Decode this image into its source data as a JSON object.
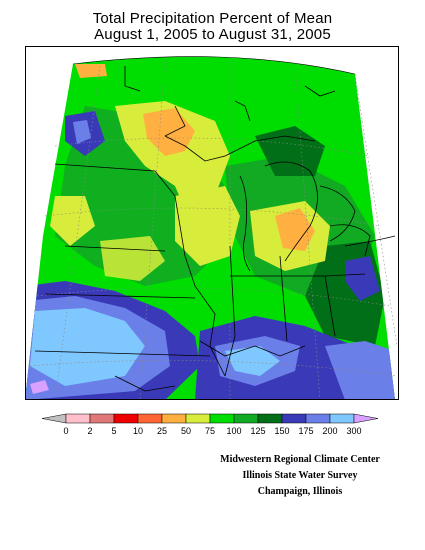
{
  "title": {
    "line1": "Total Precipitation Percent of Mean",
    "line2": "August 1, 2005 to August 31, 2005"
  },
  "legend": {
    "colors": [
      "#c0c0c0",
      "#ffc0cb",
      "#e07878",
      "#ee0000",
      "#ff6633",
      "#ffb040",
      "#d8ec3c",
      "#00dd00",
      "#11aa22",
      "#006f17",
      "#3a3ab8",
      "#6a7fe8",
      "#7ec8ff",
      "#d8a0ff"
    ],
    "labels": [
      "0",
      "2",
      "5",
      "10",
      "25",
      "50",
      "75",
      "100",
      "125",
      "150",
      "175",
      "200",
      "300"
    ]
  },
  "credits": {
    "line1": "Midwestern Regional Climate Center",
    "line2": "Illinois State Water Survey",
    "line3": "Champaign, Illinois"
  }
}
